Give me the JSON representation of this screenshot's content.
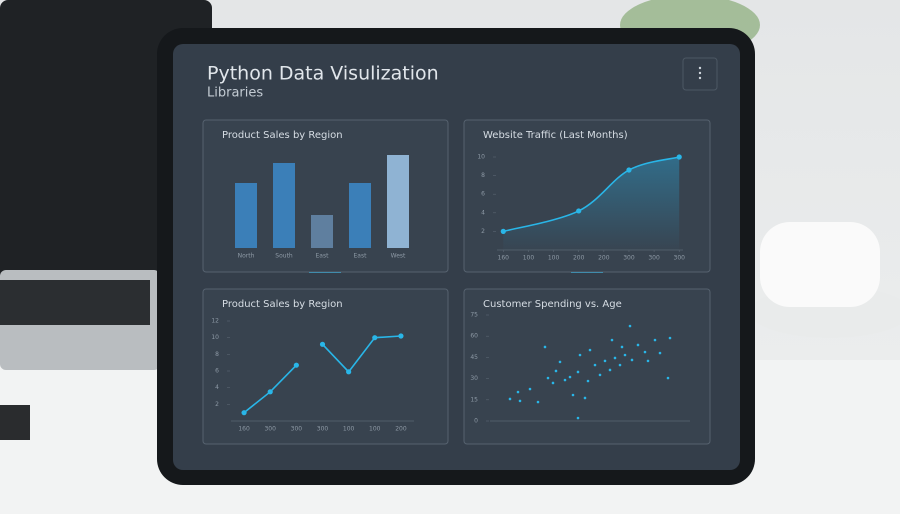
{
  "header": {
    "title": "Python Data Visulization",
    "subtitle": "Libraries"
  },
  "chart_data": [
    {
      "type": "bar",
      "title": "Product Sales by Region",
      "categories": [
        "North",
        "South",
        "East",
        "East",
        "West"
      ],
      "values": [
        65,
        85,
        33,
        65,
        93
      ],
      "colors": [
        "#3b7fb8",
        "#3b7fb8",
        "#5f7f9f",
        "#3b7fb8",
        "#8fb3d3"
      ],
      "ylim": [
        0,
        100
      ]
    },
    {
      "type": "line",
      "title": "Website Traffic (Last Months)",
      "color": "#29b6e8",
      "area": true,
      "x": [
        1,
        4,
        6,
        8
      ],
      "values": [
        2,
        4.2,
        8.6,
        10
      ],
      "xlim": [
        0.75,
        8.15
      ],
      "xticks": [
        {
          "value": 1,
          "label": "160"
        },
        {
          "value": 2,
          "label": "100"
        },
        {
          "value": 3,
          "label": "100"
        },
        {
          "value": 4,
          "label": "200"
        },
        {
          "value": 5,
          "label": "200"
        },
        {
          "value": 6,
          "label": "300"
        },
        {
          "value": 7,
          "label": "300"
        },
        {
          "value": 8,
          "label": "300"
        }
      ],
      "ylim": [
        0,
        10
      ],
      "yticks": [
        2,
        4,
        6,
        8,
        10
      ]
    },
    {
      "type": "line",
      "title": "Product Sales by Region",
      "categories": [
        "160",
        "300",
        "300",
        "300",
        "100",
        "100",
        "200"
      ],
      "series": [
        {
          "color": "#29b6e8",
          "values": [
            1,
            3.5,
            6.7,
            null,
            null,
            null,
            null
          ]
        },
        {
          "color": "#29b6e8",
          "values": [
            null,
            null,
            null,
            9.2,
            5.9,
            10,
            10.2
          ]
        }
      ],
      "ylim": [
        0,
        12
      ],
      "yticks": [
        2,
        4,
        6,
        8,
        10,
        12
      ]
    },
    {
      "type": "scatter",
      "title": "Customer Spending vs. Age",
      "color": "#29b6e8",
      "x": [
        10,
        14,
        15,
        20,
        24,
        27.5,
        29,
        31.5,
        33,
        35,
        37.5,
        40,
        41.5,
        44,
        45,
        47.5,
        49,
        50,
        52.5,
        55,
        57.5,
        60,
        61,
        62.5,
        65,
        66,
        67.5,
        70,
        71,
        74,
        77.5,
        79,
        82.5,
        85,
        89,
        90,
        44
      ],
      "values": [
        15.6,
        20.5,
        14.2,
        22.6,
        13.4,
        52.4,
        30.4,
        26.9,
        35.4,
        41.8,
        29,
        31.1,
        18.4,
        34.7,
        46.7,
        16.3,
        28.3,
        50.2,
        39.6,
        32.6,
        42.5,
        36.1,
        57.3,
        44.6,
        39.6,
        52.4,
        46.7,
        67.2,
        43.2,
        53.8,
        48.8,
        42.5,
        57.3,
        48.1,
        30.4,
        58.7,
        2.1
      ],
      "xlim": [
        0,
        100
      ],
      "ylim": [
        0,
        75
      ],
      "yticks": [
        0,
        15,
        30,
        45,
        60,
        75
      ]
    }
  ]
}
